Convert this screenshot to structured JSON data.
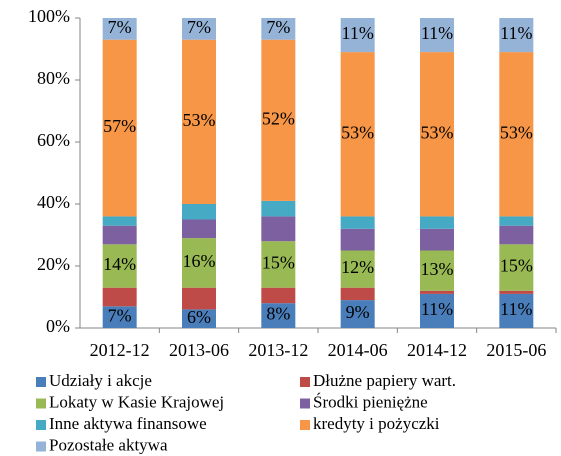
{
  "chart_data": {
    "type": "stacked_bar",
    "categories": [
      "2012-12",
      "2013-06",
      "2013-12",
      "2014-06",
      "2014-12",
      "2015-06"
    ],
    "ylim": [
      0,
      100
    ],
    "yticks": [
      {
        "value": 0,
        "label": "0%"
      },
      {
        "value": 20,
        "label": "20%"
      },
      {
        "value": 40,
        "label": "40%"
      },
      {
        "value": 60,
        "label": "60%"
      },
      {
        "value": 80,
        "label": "80%"
      },
      {
        "value": 100,
        "label": "100%"
      }
    ],
    "legend": "bottom",
    "series": [
      {
        "name": "Udziały i akcje",
        "color": "#4a7ebb",
        "values": [
          7,
          6,
          8,
          9,
          11,
          11
        ],
        "value_labels": [
          "7%",
          "6%",
          "8%",
          "9%",
          "11%",
          "11%"
        ]
      },
      {
        "name": "Dłużne papiery wart.",
        "color": "#be4b48",
        "values": [
          6,
          7,
          5,
          4,
          1,
          1
        ]
      },
      {
        "name": "Lokaty w Kasie Krajowej",
        "color": "#98b954",
        "values": [
          14,
          16,
          15,
          12,
          13,
          15
        ],
        "value_labels": [
          "14%",
          "16%",
          "15%",
          "12%",
          "13%",
          "15%"
        ]
      },
      {
        "name": "Środki pieniężne",
        "color": "#7d60a0",
        "values": [
          6,
          6,
          8,
          7,
          7,
          6
        ]
      },
      {
        "name": "Inne aktywa finansowe",
        "color": "#46aac5",
        "values": [
          3,
          5,
          5,
          4,
          4,
          3
        ]
      },
      {
        "name": "kredyty i pożyczki",
        "color": "#f79646",
        "values": [
          57,
          53,
          52,
          53,
          53,
          53
        ],
        "value_labels": [
          "57%",
          "53%",
          "52%",
          "53%",
          "53%",
          "53%"
        ]
      },
      {
        "name": "Pozostałe aktywa",
        "color": "#95b3d7",
        "values": [
          7,
          7,
          7,
          11,
          11,
          11
        ],
        "value_labels": [
          "7%",
          "7%",
          "7%",
          "11%",
          "11%",
          "11%"
        ]
      }
    ]
  }
}
